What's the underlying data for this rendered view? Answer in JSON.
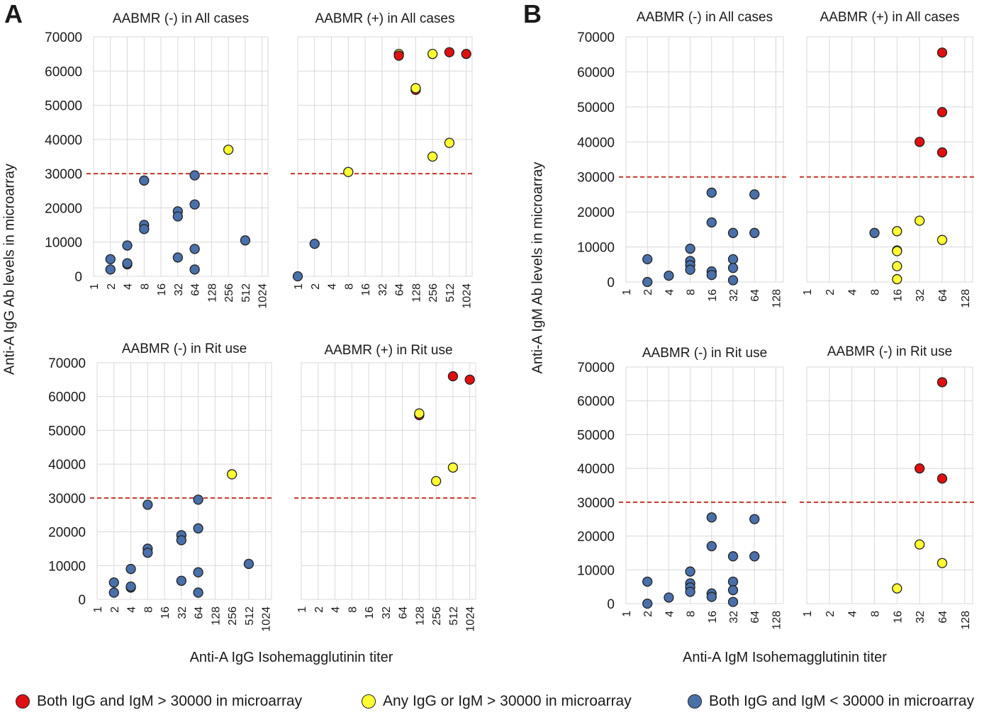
{
  "panel_labels": {
    "a": "A",
    "b": "B"
  },
  "axis_labels": {
    "a_y": "Anti-A IgG Ab levels in microarray",
    "a_x": "Anti-A IgG Isohemagglutinin titer",
    "b_y": "Anti-A IgM Ab levels in microarray",
    "b_x": "Anti-A IgM Isohemagglutinin titer"
  },
  "legend": [
    {
      "label": "Both IgG and IgM > 30000 in microarray",
      "color": "#e01010"
    },
    {
      "label": "Any IgG or IgM > 30000 in microarray",
      "color": "#ffff33"
    },
    {
      "label": "Both IgG and IgM < 30000 in microarray",
      "color": "#4a70aa"
    }
  ],
  "colors": {
    "red": "#e01010",
    "yellow": "#ffff33",
    "blue": "#4a70aa",
    "threshold": "#c0392b",
    "grid": "#d9d9d9"
  },
  "chart_data": [
    {
      "id": "A-top-left",
      "type": "scatter",
      "title": "AABMR (-) in All cases",
      "xcategories": [
        "1",
        "2",
        "4",
        "8",
        "16",
        "32",
        "64",
        "128",
        "256",
        "512",
        "1024"
      ],
      "yticks": [
        0,
        10000,
        20000,
        30000,
        40000,
        50000,
        60000,
        70000
      ],
      "ylim": [
        0,
        70000
      ],
      "threshold": 30000,
      "show_yticks": true,
      "points": [
        {
          "x": "2",
          "y": 5000,
          "c": "blue"
        },
        {
          "x": "2",
          "y": 2000,
          "c": "blue"
        },
        {
          "x": "4",
          "y": 9000,
          "c": "blue"
        },
        {
          "x": "4",
          "y": 3500,
          "c": "blue"
        },
        {
          "x": "4",
          "y": 3800,
          "c": "blue"
        },
        {
          "x": "8",
          "y": 28000,
          "c": "blue"
        },
        {
          "x": "8",
          "y": 15000,
          "c": "blue"
        },
        {
          "x": "8",
          "y": 13800,
          "c": "blue"
        },
        {
          "x": "32",
          "y": 19000,
          "c": "blue"
        },
        {
          "x": "32",
          "y": 17500,
          "c": "blue"
        },
        {
          "x": "32",
          "y": 5500,
          "c": "blue"
        },
        {
          "x": "64",
          "y": 29500,
          "c": "blue"
        },
        {
          "x": "64",
          "y": 21000,
          "c": "blue"
        },
        {
          "x": "64",
          "y": 8000,
          "c": "blue"
        },
        {
          "x": "64",
          "y": 2000,
          "c": "blue"
        },
        {
          "x": "256",
          "y": 37000,
          "c": "yellow"
        },
        {
          "x": "512",
          "y": 10500,
          "c": "blue"
        }
      ]
    },
    {
      "id": "A-top-right",
      "type": "scatter",
      "title": "AABMR (+) in All cases",
      "xcategories": [
        "1",
        "2",
        "4",
        "8",
        "16",
        "32",
        "64",
        "128",
        "256",
        "512",
        "1024"
      ],
      "yticks": [
        0,
        10000,
        20000,
        30000,
        40000,
        50000,
        60000,
        70000
      ],
      "ylim": [
        0,
        70000
      ],
      "threshold": 30000,
      "show_yticks": false,
      "points": [
        {
          "x": "1",
          "y": 0,
          "c": "blue"
        },
        {
          "x": "2",
          "y": 9500,
          "c": "blue"
        },
        {
          "x": "8",
          "y": 30500,
          "c": "yellow"
        },
        {
          "x": "64",
          "y": 65000,
          "c": "yellow"
        },
        {
          "x": "64",
          "y": 64500,
          "c": "red"
        },
        {
          "x": "128",
          "y": 54500,
          "c": "red"
        },
        {
          "x": "128",
          "y": 55000,
          "c": "yellow"
        },
        {
          "x": "256",
          "y": 65000,
          "c": "yellow"
        },
        {
          "x": "256",
          "y": 35000,
          "c": "yellow"
        },
        {
          "x": "512",
          "y": 65500,
          "c": "red"
        },
        {
          "x": "512",
          "y": 39000,
          "c": "yellow"
        },
        {
          "x": "1024",
          "y": 65000,
          "c": "red"
        }
      ]
    },
    {
      "id": "A-bottom-left",
      "type": "scatter",
      "title": "AABMR (-) in Rit use",
      "xcategories": [
        "1",
        "2",
        "4",
        "8",
        "16",
        "32",
        "64",
        "128",
        "256",
        "512",
        "1024"
      ],
      "yticks": [
        0,
        10000,
        20000,
        30000,
        40000,
        50000,
        60000,
        70000
      ],
      "ylim": [
        0,
        70000
      ],
      "threshold": 30000,
      "show_yticks": true,
      "points": [
        {
          "x": "2",
          "y": 5000,
          "c": "blue"
        },
        {
          "x": "2",
          "y": 2000,
          "c": "blue"
        },
        {
          "x": "4",
          "y": 9000,
          "c": "blue"
        },
        {
          "x": "4",
          "y": 3500,
          "c": "blue"
        },
        {
          "x": "4",
          "y": 3800,
          "c": "blue"
        },
        {
          "x": "8",
          "y": 28000,
          "c": "blue"
        },
        {
          "x": "8",
          "y": 15000,
          "c": "blue"
        },
        {
          "x": "8",
          "y": 13800,
          "c": "blue"
        },
        {
          "x": "32",
          "y": 19000,
          "c": "blue"
        },
        {
          "x": "32",
          "y": 17500,
          "c": "blue"
        },
        {
          "x": "32",
          "y": 5500,
          "c": "blue"
        },
        {
          "x": "64",
          "y": 29500,
          "c": "blue"
        },
        {
          "x": "64",
          "y": 21000,
          "c": "blue"
        },
        {
          "x": "64",
          "y": 8000,
          "c": "blue"
        },
        {
          "x": "64",
          "y": 2000,
          "c": "blue"
        },
        {
          "x": "256",
          "y": 37000,
          "c": "yellow"
        },
        {
          "x": "512",
          "y": 10500,
          "c": "blue"
        }
      ]
    },
    {
      "id": "A-bottom-right",
      "type": "scatter",
      "title": "AABMR (+) in Rit use",
      "xcategories": [
        "1",
        "2",
        "4",
        "8",
        "16",
        "32",
        "64",
        "128",
        "256",
        "512",
        "1024"
      ],
      "yticks": [
        0,
        10000,
        20000,
        30000,
        40000,
        50000,
        60000,
        70000
      ],
      "ylim": [
        0,
        70000
      ],
      "threshold": 30000,
      "show_yticks": false,
      "points": [
        {
          "x": "128",
          "y": 54500,
          "c": "red"
        },
        {
          "x": "128",
          "y": 55000,
          "c": "yellow"
        },
        {
          "x": "256",
          "y": 35000,
          "c": "yellow"
        },
        {
          "x": "512",
          "y": 66000,
          "c": "red"
        },
        {
          "x": "512",
          "y": 39000,
          "c": "yellow"
        },
        {
          "x": "1024",
          "y": 65000,
          "c": "red"
        }
      ]
    },
    {
      "id": "B-top-left",
      "type": "scatter",
      "title": "AABMR (-) in All cases",
      "xcategories": [
        "1",
        "2",
        "4",
        "8",
        "16",
        "32",
        "64",
        "128"
      ],
      "yticks": [
        0,
        10000,
        20000,
        30000,
        40000,
        50000,
        60000,
        70000
      ],
      "ylim": [
        0,
        70000
      ],
      "threshold": 30000,
      "show_yticks": true,
      "points": [
        {
          "x": "2",
          "y": 6500,
          "c": "blue"
        },
        {
          "x": "2",
          "y": 0,
          "c": "blue"
        },
        {
          "x": "4",
          "y": 1800,
          "c": "blue"
        },
        {
          "x": "8",
          "y": 9500,
          "c": "blue"
        },
        {
          "x": "8",
          "y": 6000,
          "c": "blue"
        },
        {
          "x": "8",
          "y": 4800,
          "c": "blue"
        },
        {
          "x": "8",
          "y": 3500,
          "c": "blue"
        },
        {
          "x": "16",
          "y": 25500,
          "c": "blue"
        },
        {
          "x": "16",
          "y": 17000,
          "c": "blue"
        },
        {
          "x": "16",
          "y": 3000,
          "c": "blue"
        },
        {
          "x": "16",
          "y": 2000,
          "c": "blue"
        },
        {
          "x": "32",
          "y": 14000,
          "c": "blue"
        },
        {
          "x": "32",
          "y": 6500,
          "c": "blue"
        },
        {
          "x": "32",
          "y": 4000,
          "c": "blue"
        },
        {
          "x": "32",
          "y": 500,
          "c": "blue"
        },
        {
          "x": "64",
          "y": 25000,
          "c": "blue"
        },
        {
          "x": "64",
          "y": 14000,
          "c": "blue"
        }
      ]
    },
    {
      "id": "B-top-right",
      "type": "scatter",
      "title": "AABMR (+) in All cases",
      "xcategories": [
        "1",
        "2",
        "4",
        "8",
        "16",
        "32",
        "64",
        "128"
      ],
      "yticks": [
        0,
        10000,
        20000,
        30000,
        40000,
        50000,
        60000,
        70000
      ],
      "ylim": [
        0,
        70000
      ],
      "threshold": 30000,
      "show_yticks": false,
      "points": [
        {
          "x": "8",
          "y": 14000,
          "c": "blue"
        },
        {
          "x": "16",
          "y": 14500,
          "c": "yellow"
        },
        {
          "x": "16",
          "y": 9000,
          "c": "blue"
        },
        {
          "x": "16",
          "y": 8800,
          "c": "yellow"
        },
        {
          "x": "16",
          "y": 4500,
          "c": "yellow"
        },
        {
          "x": "16",
          "y": 800,
          "c": "yellow"
        },
        {
          "x": "32",
          "y": 40000,
          "c": "red"
        },
        {
          "x": "32",
          "y": 17500,
          "c": "yellow"
        },
        {
          "x": "64",
          "y": 65500,
          "c": "red"
        },
        {
          "x": "64",
          "y": 48500,
          "c": "red"
        },
        {
          "x": "64",
          "y": 37000,
          "c": "red"
        },
        {
          "x": "64",
          "y": 12000,
          "c": "yellow"
        }
      ]
    },
    {
      "id": "B-bottom-left",
      "type": "scatter",
      "title": "AABMR (-) in Rit use",
      "xcategories": [
        "1",
        "2",
        "4",
        "8",
        "16",
        "32",
        "64",
        "128"
      ],
      "yticks": [
        0,
        10000,
        20000,
        30000,
        40000,
        50000,
        60000,
        70000
      ],
      "ylim": [
        0,
        70000
      ],
      "threshold": 30000,
      "show_yticks": true,
      "points": [
        {
          "x": "2",
          "y": 6500,
          "c": "blue"
        },
        {
          "x": "2",
          "y": 0,
          "c": "blue"
        },
        {
          "x": "4",
          "y": 1800,
          "c": "blue"
        },
        {
          "x": "8",
          "y": 9500,
          "c": "blue"
        },
        {
          "x": "8",
          "y": 6000,
          "c": "blue"
        },
        {
          "x": "8",
          "y": 4800,
          "c": "blue"
        },
        {
          "x": "8",
          "y": 3500,
          "c": "blue"
        },
        {
          "x": "16",
          "y": 25500,
          "c": "blue"
        },
        {
          "x": "16",
          "y": 17000,
          "c": "blue"
        },
        {
          "x": "16",
          "y": 3000,
          "c": "blue"
        },
        {
          "x": "16",
          "y": 2000,
          "c": "blue"
        },
        {
          "x": "32",
          "y": 14000,
          "c": "blue"
        },
        {
          "x": "32",
          "y": 6500,
          "c": "blue"
        },
        {
          "x": "32",
          "y": 4000,
          "c": "blue"
        },
        {
          "x": "32",
          "y": 500,
          "c": "blue"
        },
        {
          "x": "64",
          "y": 25000,
          "c": "blue"
        },
        {
          "x": "64",
          "y": 14000,
          "c": "blue"
        }
      ]
    },
    {
      "id": "B-bottom-right",
      "type": "scatter",
      "title": "AABMR (-) in Rit use",
      "xcategories": [
        "1",
        "2",
        "4",
        "8",
        "16",
        "32",
        "64",
        "128"
      ],
      "yticks": [
        0,
        10000,
        20000,
        30000,
        40000,
        50000,
        60000,
        70000
      ],
      "ylim": [
        0,
        70000
      ],
      "threshold": 30000,
      "show_yticks": false,
      "points": [
        {
          "x": "16",
          "y": 4500,
          "c": "yellow"
        },
        {
          "x": "32",
          "y": 40000,
          "c": "red"
        },
        {
          "x": "32",
          "y": 17500,
          "c": "yellow"
        },
        {
          "x": "64",
          "y": 65500,
          "c": "red"
        },
        {
          "x": "64",
          "y": 37000,
          "c": "red"
        },
        {
          "x": "64",
          "y": 12000,
          "c": "yellow"
        }
      ]
    }
  ]
}
